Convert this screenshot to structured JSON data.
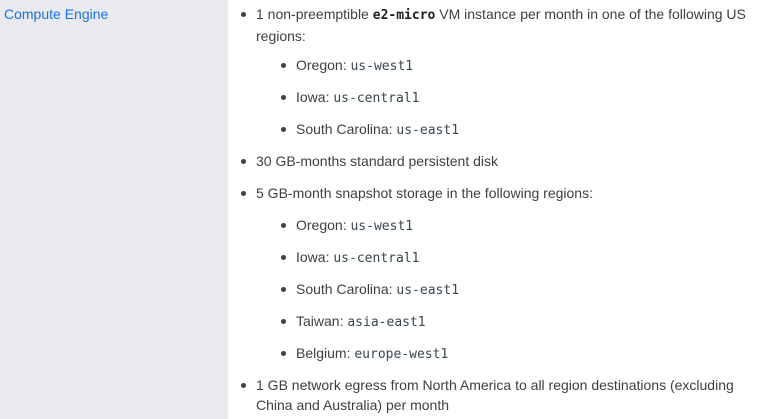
{
  "product": {
    "name": "Compute Engine"
  },
  "details": {
    "vm": {
      "prefix": "1 non-preemptible ",
      "machine": "e2-micro",
      "suffix": " VM instance per month in one of the following US regions:",
      "regions": [
        {
          "label": "Oregon: ",
          "code": "us-west1"
        },
        {
          "label": "Iowa: ",
          "code": "us-central1"
        },
        {
          "label": "South Carolina: ",
          "code": "us-east1"
        }
      ]
    },
    "disk": "30 GB-months standard persistent disk",
    "snapshot": {
      "text": "5 GB-month snapshot storage in the following regions:",
      "regions": [
        {
          "label": "Oregon: ",
          "code": "us-west1"
        },
        {
          "label": "Iowa: ",
          "code": "us-central1"
        },
        {
          "label": "South Carolina: ",
          "code": "us-east1"
        },
        {
          "label": "Taiwan: ",
          "code": "asia-east1"
        },
        {
          "label": "Belgium: ",
          "code": "europe-west1"
        }
      ]
    },
    "egress": "1 GB network egress from North America to all region destinations (excluding China and Australia) per month"
  }
}
